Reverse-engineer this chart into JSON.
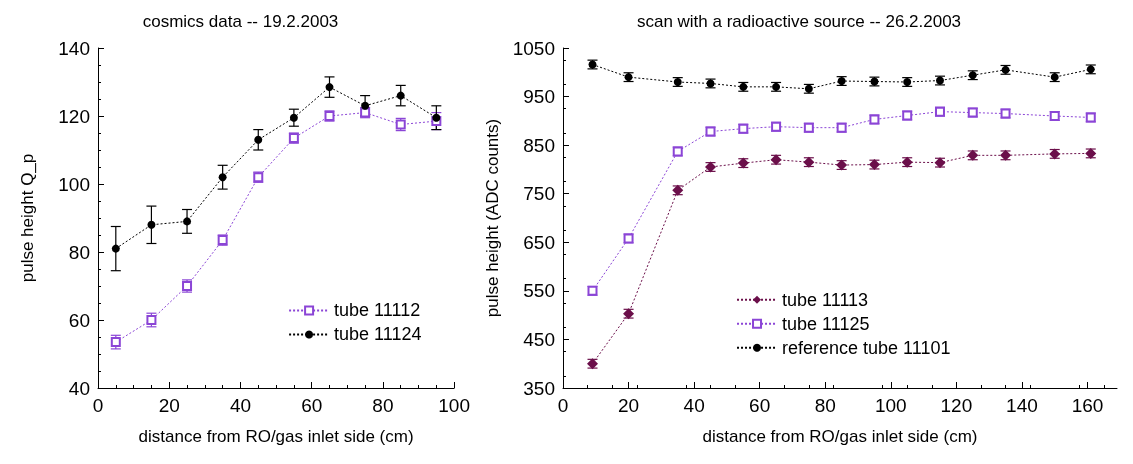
{
  "chart_data": [
    {
      "type": "line",
      "title": "cosmics data -- 19.2.2003",
      "xlabel": "distance from RO/gas inlet side (cm)",
      "ylabel": "pulse height Q_p",
      "xlim": [
        0,
        100
      ],
      "xticks": [
        0,
        20,
        40,
        60,
        80,
        100
      ],
      "ylim": [
        40,
        140
      ],
      "yticks": [
        40,
        60,
        80,
        100,
        120,
        140
      ],
      "grid": false,
      "legend": "bottom right",
      "line_style": "dotted",
      "x": [
        5,
        15,
        25,
        35,
        45,
        55,
        65,
        75,
        85,
        95
      ],
      "series": [
        {
          "name": "tube 11112",
          "color": "#8b45d6",
          "marker": "square",
          "values": [
            53.5,
            60,
            70,
            83.5,
            102,
            113.5,
            120,
            121,
            117.5,
            118.5
          ],
          "errors": [
            2,
            2,
            1.8,
            1.5,
            1.5,
            1.5,
            1.5,
            1.5,
            1.8,
            2.5
          ]
        },
        {
          "name": "tube 11124",
          "color": "#000000",
          "marker": "circle",
          "values": [
            81,
            88,
            89,
            102,
            113,
            119.5,
            128.5,
            123,
            126,
            119.5
          ],
          "errors": [
            6.5,
            5.5,
            3.5,
            3.5,
            3,
            2.5,
            3,
            3,
            3,
            3.5
          ]
        }
      ]
    },
    {
      "type": "line",
      "title": "scan with a radioactive source -- 26.2.2003",
      "xlabel": "distance from RO/gas inlet side (cm)",
      "ylabel": "pulse height (ADC counts)",
      "xlim": [
        0,
        169
      ],
      "xticks": [
        0,
        20,
        40,
        60,
        80,
        100,
        120,
        140,
        160
      ],
      "ylim": [
        350,
        1050
      ],
      "yticks": [
        350,
        450,
        550,
        650,
        750,
        850,
        950,
        1050
      ],
      "grid": false,
      "legend": "right",
      "line_style": "dotted",
      "x": [
        9,
        20,
        35,
        45,
        55,
        65,
        75,
        85,
        95,
        105,
        115,
        125,
        135,
        150,
        161
      ],
      "series": [
        {
          "name": "tube 11113",
          "color": "#6b0f4a",
          "marker": "diamond",
          "values": [
            400,
            503,
            757,
            805,
            813,
            820,
            815,
            809,
            810,
            815,
            814,
            829,
            829,
            832,
            833
          ],
          "errors": [
            9,
            9,
            9,
            9,
            9,
            9,
            9,
            9,
            9,
            9,
            9,
            9,
            9,
            9,
            9
          ]
        },
        {
          "name": "tube 11125",
          "color": "#8b45d6",
          "marker": "square",
          "values": [
            550,
            658,
            837,
            878,
            884,
            888,
            886,
            886,
            903,
            911,
            919,
            917,
            915,
            910,
            907
          ],
          "errors": [
            9,
            9,
            9,
            9,
            9,
            9,
            9,
            9,
            9,
            9,
            9,
            9,
            9,
            9,
            9
          ]
        },
        {
          "name": "reference tube 11101",
          "color": "#000000",
          "marker": "circle",
          "values": [
            1016,
            990,
            980,
            977,
            970,
            970,
            966,
            982,
            981,
            980,
            983,
            994,
            1005,
            990,
            1006
          ],
          "errors": [
            9,
            9,
            9,
            9,
            9,
            9,
            9,
            9,
            9,
            9,
            9,
            9,
            9,
            9,
            9
          ]
        }
      ]
    }
  ]
}
